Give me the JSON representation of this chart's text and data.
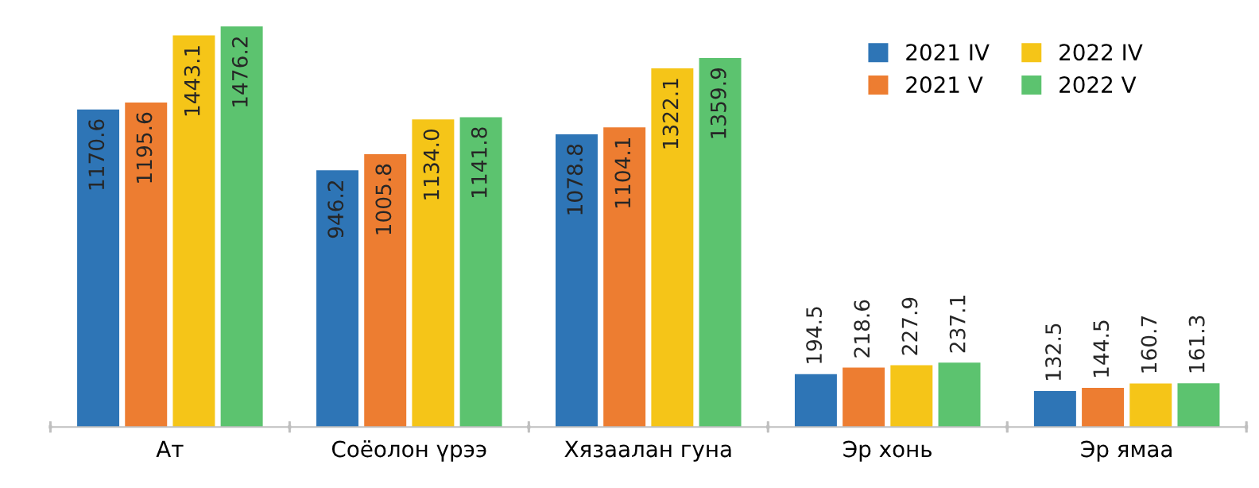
{
  "chart_data": {
    "type": "bar",
    "categories": [
      "Ат",
      "Соёолон үрээ",
      "Хязаалан гуна",
      "Эр хонь",
      "Эр ямаа"
    ],
    "series": [
      {
        "name": "2021 IV",
        "color": "#2e75b6",
        "values": [
          1170.6,
          946.2,
          1078.8,
          194.5,
          132.5
        ],
        "value_labels": [
          "1170.6",
          "946.2",
          "1078.8",
          "194.5",
          "132.5"
        ]
      },
      {
        "name": "2021 V",
        "color": "#ed7d31",
        "values": [
          1195.6,
          1005.8,
          1104.1,
          218.6,
          144.5
        ],
        "value_labels": [
          "1195.6",
          "1005.8",
          "1104.1",
          "218.6",
          "144.5"
        ]
      },
      {
        "name": "2022 IV",
        "color": "#f5c518",
        "values": [
          1443.1,
          1134.0,
          1322.1,
          227.9,
          160.7
        ],
        "value_labels": [
          "1443.1",
          "1134.0",
          "1322.1",
          "227.9",
          "160.7"
        ]
      },
      {
        "name": "2022 V",
        "color": "#5cc36f",
        "values": [
          1476.2,
          1141.8,
          1359.9,
          237.1,
          161.3
        ],
        "value_labels": [
          "1476.2",
          "1141.8",
          "1359.9",
          "237.1",
          "161.3"
        ]
      }
    ],
    "legend": "top right"
  }
}
